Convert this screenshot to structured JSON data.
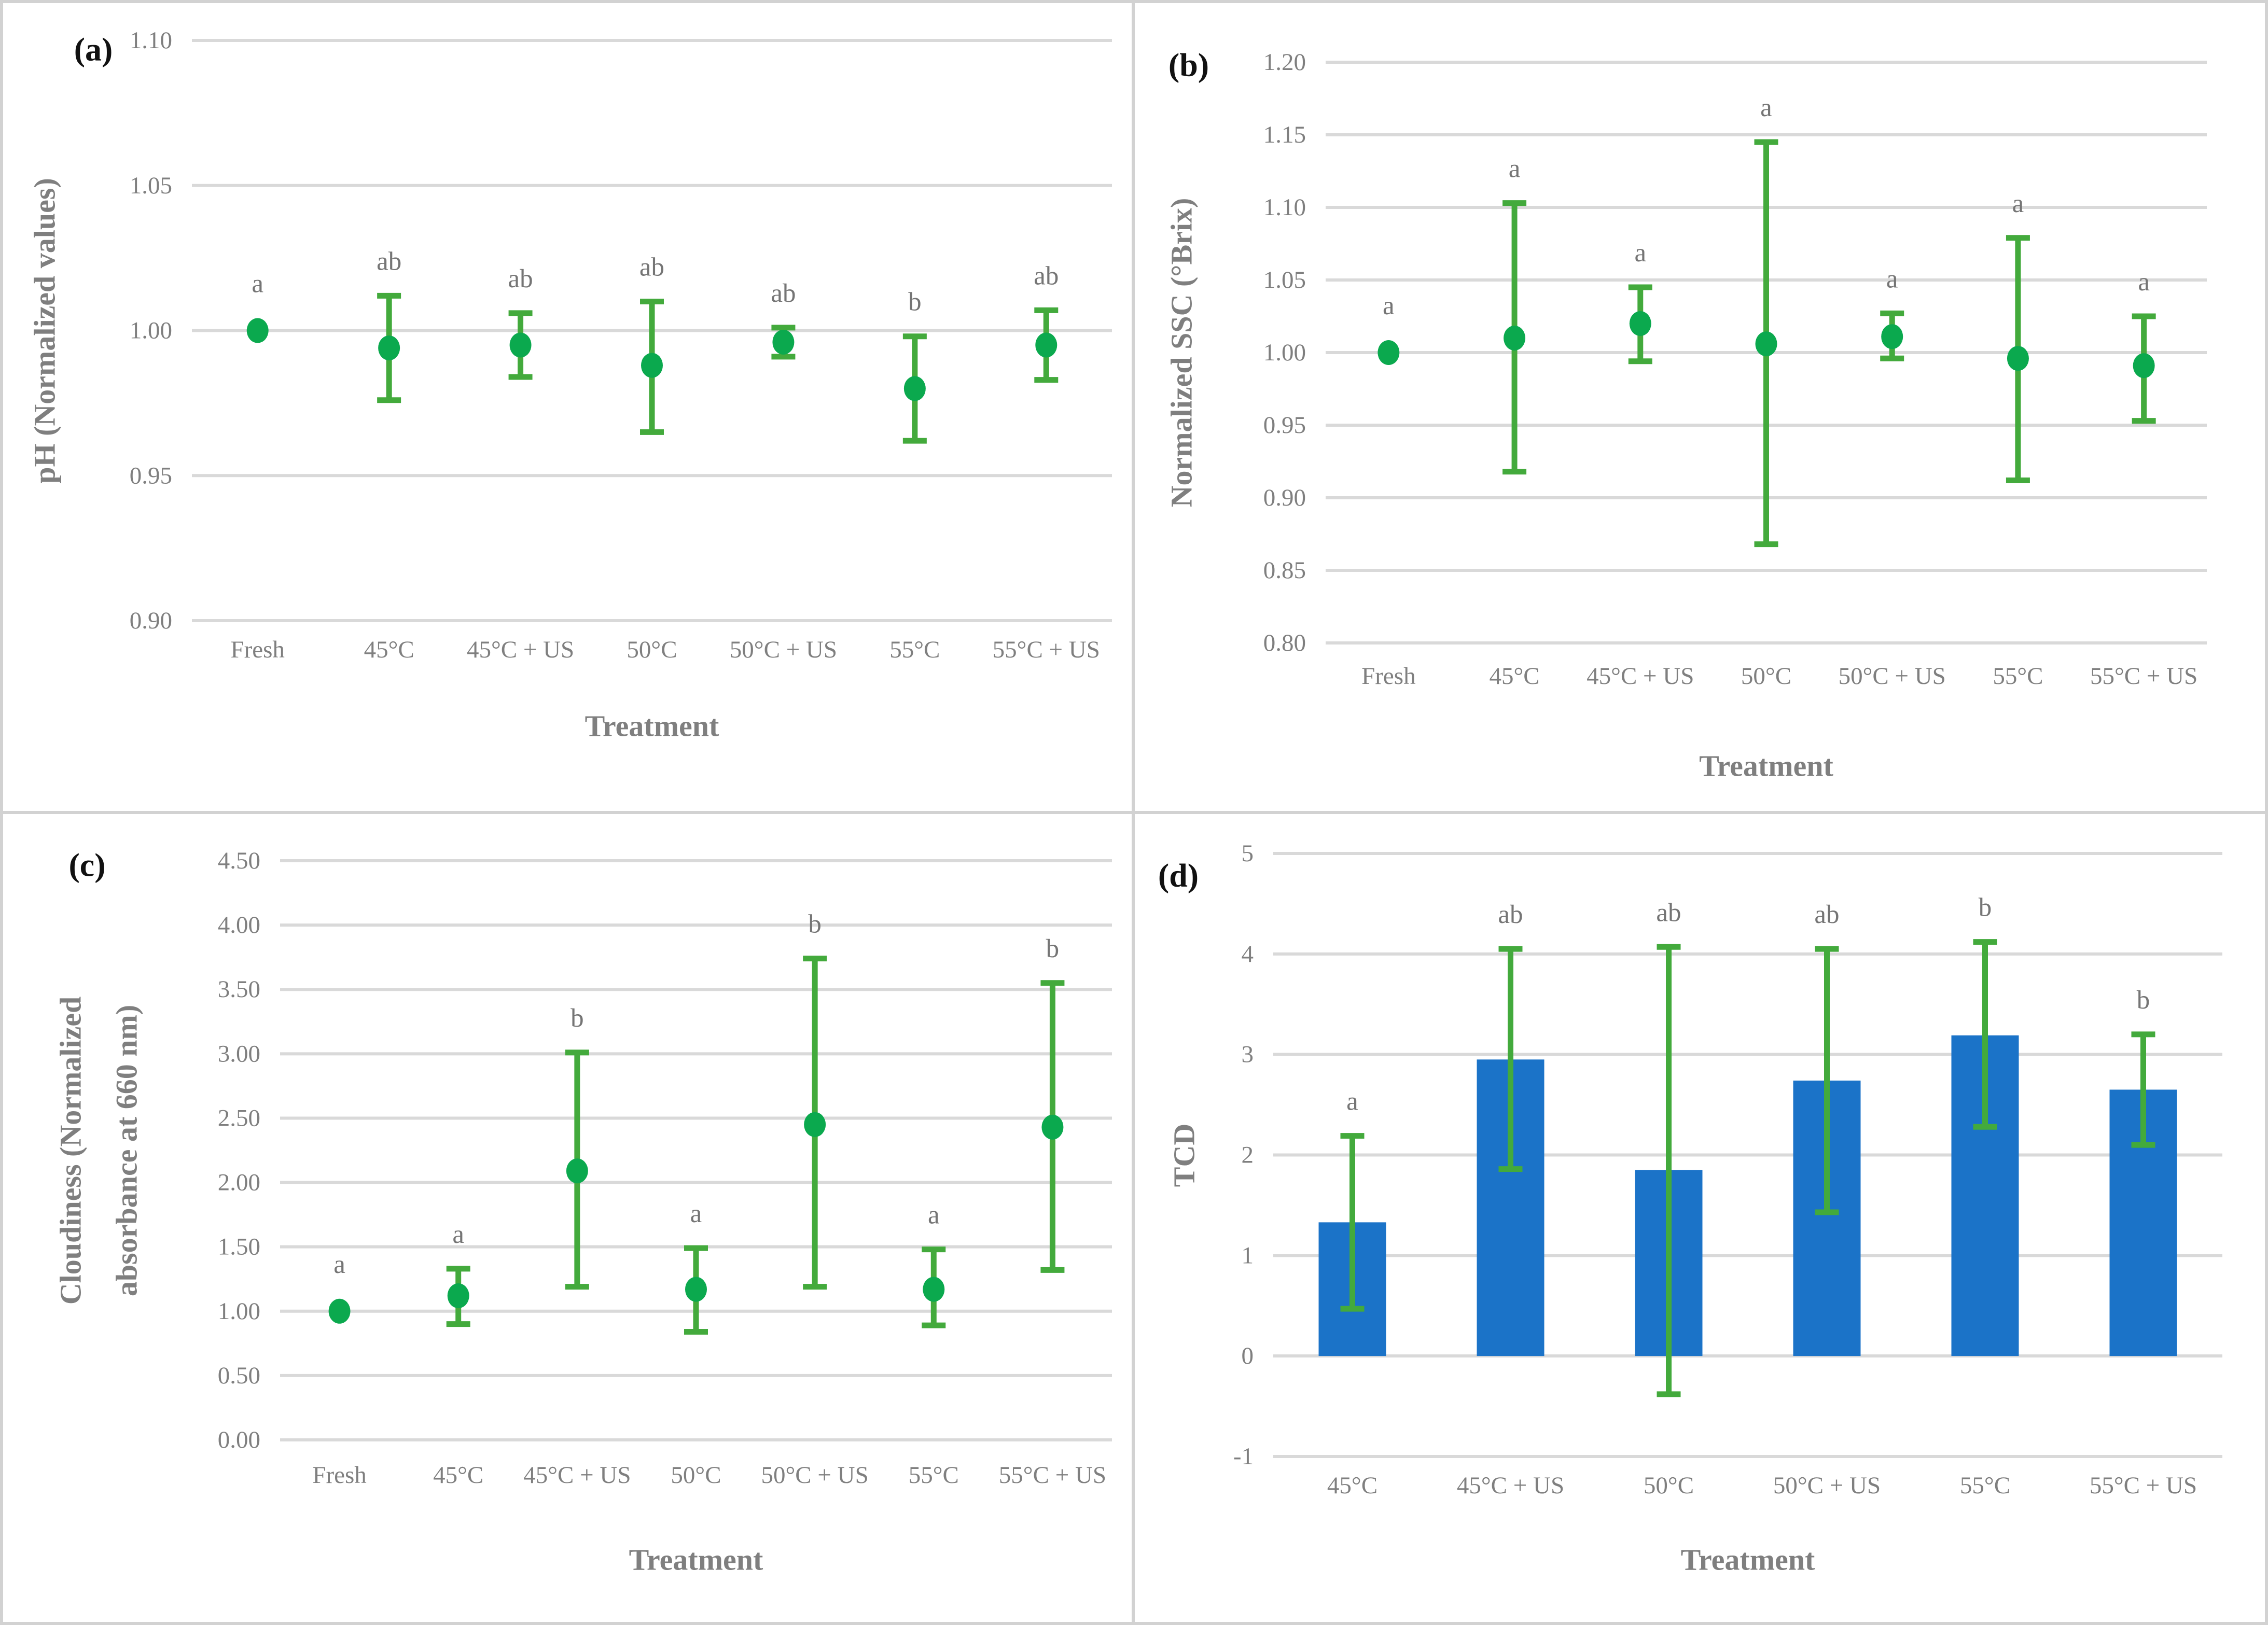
{
  "figure": {
    "x_axis_title": "Treatment",
    "panel_labels": [
      "(a)",
      "(b)",
      "(c)",
      "(d)"
    ]
  },
  "colors": {
    "marker_green": "#0BA94E",
    "error_bar_green": "#43AA3C",
    "bar_blue": "#1B73C8",
    "gridline_gray": "#D9D9D9",
    "axis_text_gray": "#7F7F7F",
    "sig_letter_gray": "#757575",
    "panel_label_black": "#111111",
    "border_gray": "#D2D2D2",
    "background": "#FFFFFF"
  },
  "chart_data": [
    {
      "id": "a",
      "type": "scatter",
      "panel_label": "(a)",
      "ylabel_lines": [
        "pH (Normalized values)"
      ],
      "xlabel": "Treatment",
      "categories": [
        "Fresh",
        "45°C",
        "45°C + US",
        "50°C",
        "50°C + US",
        "55°C",
        "55°C + US"
      ],
      "values": [
        1.0,
        0.994,
        0.995,
        0.988,
        0.996,
        0.98,
        0.995
      ],
      "err_low": [
        null,
        0.976,
        0.984,
        0.965,
        0.991,
        0.962,
        0.983
      ],
      "err_high": [
        null,
        1.012,
        1.006,
        1.01,
        1.001,
        0.998,
        1.007
      ],
      "sig_letters": [
        "a",
        "ab",
        "ab",
        "ab",
        "ab",
        "b",
        "ab"
      ],
      "ylim": [
        0.9,
        1.1
      ],
      "yticks": [
        "1.10",
        "1.05",
        "1.00",
        "0.95",
        "0.90"
      ],
      "grid": true,
      "legend": "none"
    },
    {
      "id": "b",
      "type": "scatter",
      "panel_label": "(b)",
      "ylabel_lines": [
        "Normalized SSC (°Brix)"
      ],
      "xlabel": "Treatment",
      "categories": [
        "Fresh",
        "45°C",
        "45°C + US",
        "50°C",
        "50°C + US",
        "55°C",
        "55°C + US"
      ],
      "values": [
        1.0,
        1.01,
        1.02,
        1.006,
        1.011,
        0.996,
        0.991
      ],
      "err_low": [
        null,
        0.918,
        0.994,
        0.868,
        0.996,
        0.912,
        0.953
      ],
      "err_high": [
        null,
        1.103,
        1.045,
        1.145,
        1.027,
        1.079,
        1.025
      ],
      "sig_letters": [
        "a",
        "a",
        "a",
        "a",
        "a",
        "a",
        "a"
      ],
      "ylim": [
        0.8,
        1.2
      ],
      "yticks": [
        "1.20",
        "1.15",
        "1.10",
        "1.05",
        "1.00",
        "0.95",
        "0.90",
        "0.85",
        "0.80"
      ],
      "grid": true,
      "legend": "none"
    },
    {
      "id": "c",
      "type": "scatter",
      "panel_label": "(c)",
      "ylabel_lines": [
        "Cloudiness (Normalized",
        "absorbance at 660 nm)"
      ],
      "xlabel": "Treatment",
      "categories": [
        "Fresh",
        "45°C",
        "45°C + US",
        "50°C",
        "50°C + US",
        "55°C",
        "55°C + US"
      ],
      "values": [
        1.0,
        1.12,
        2.09,
        1.17,
        2.45,
        1.17,
        2.43
      ],
      "err_low": [
        null,
        0.9,
        1.19,
        0.84,
        1.19,
        0.89,
        1.32
      ],
      "err_high": [
        null,
        1.33,
        3.01,
        1.49,
        3.74,
        1.48,
        3.55
      ],
      "sig_letters": [
        "a",
        "a",
        "b",
        "a",
        "b",
        "a",
        "b"
      ],
      "ylim": [
        0.0,
        4.5
      ],
      "yticks": [
        "4.50",
        "4.00",
        "3.50",
        "3.00",
        "2.50",
        "2.00",
        "1.50",
        "1.00",
        "0.50",
        "0.00"
      ],
      "grid": true,
      "legend": "none"
    },
    {
      "id": "d",
      "type": "bar",
      "panel_label": "(d)",
      "ylabel_lines": [
        "TCD"
      ],
      "xlabel": "Treatment",
      "categories": [
        "45°C",
        "45°C + US",
        "50°C",
        "50°C + US",
        "55°C",
        "55°C + US"
      ],
      "values": [
        1.33,
        2.95,
        1.85,
        2.74,
        3.19,
        2.65
      ],
      "err_low": [
        0.47,
        1.86,
        -0.38,
        1.43,
        2.28,
        2.1
      ],
      "err_high": [
        2.19,
        4.05,
        4.07,
        4.05,
        4.12,
        3.2
      ],
      "sig_letters": [
        "a",
        "ab",
        "ab",
        "ab",
        "b",
        "b"
      ],
      "ylim": [
        -1,
        5
      ],
      "yticks": [
        "5",
        "4",
        "3",
        "2",
        "1",
        "0",
        "-1"
      ],
      "grid": true,
      "legend": "none"
    }
  ]
}
